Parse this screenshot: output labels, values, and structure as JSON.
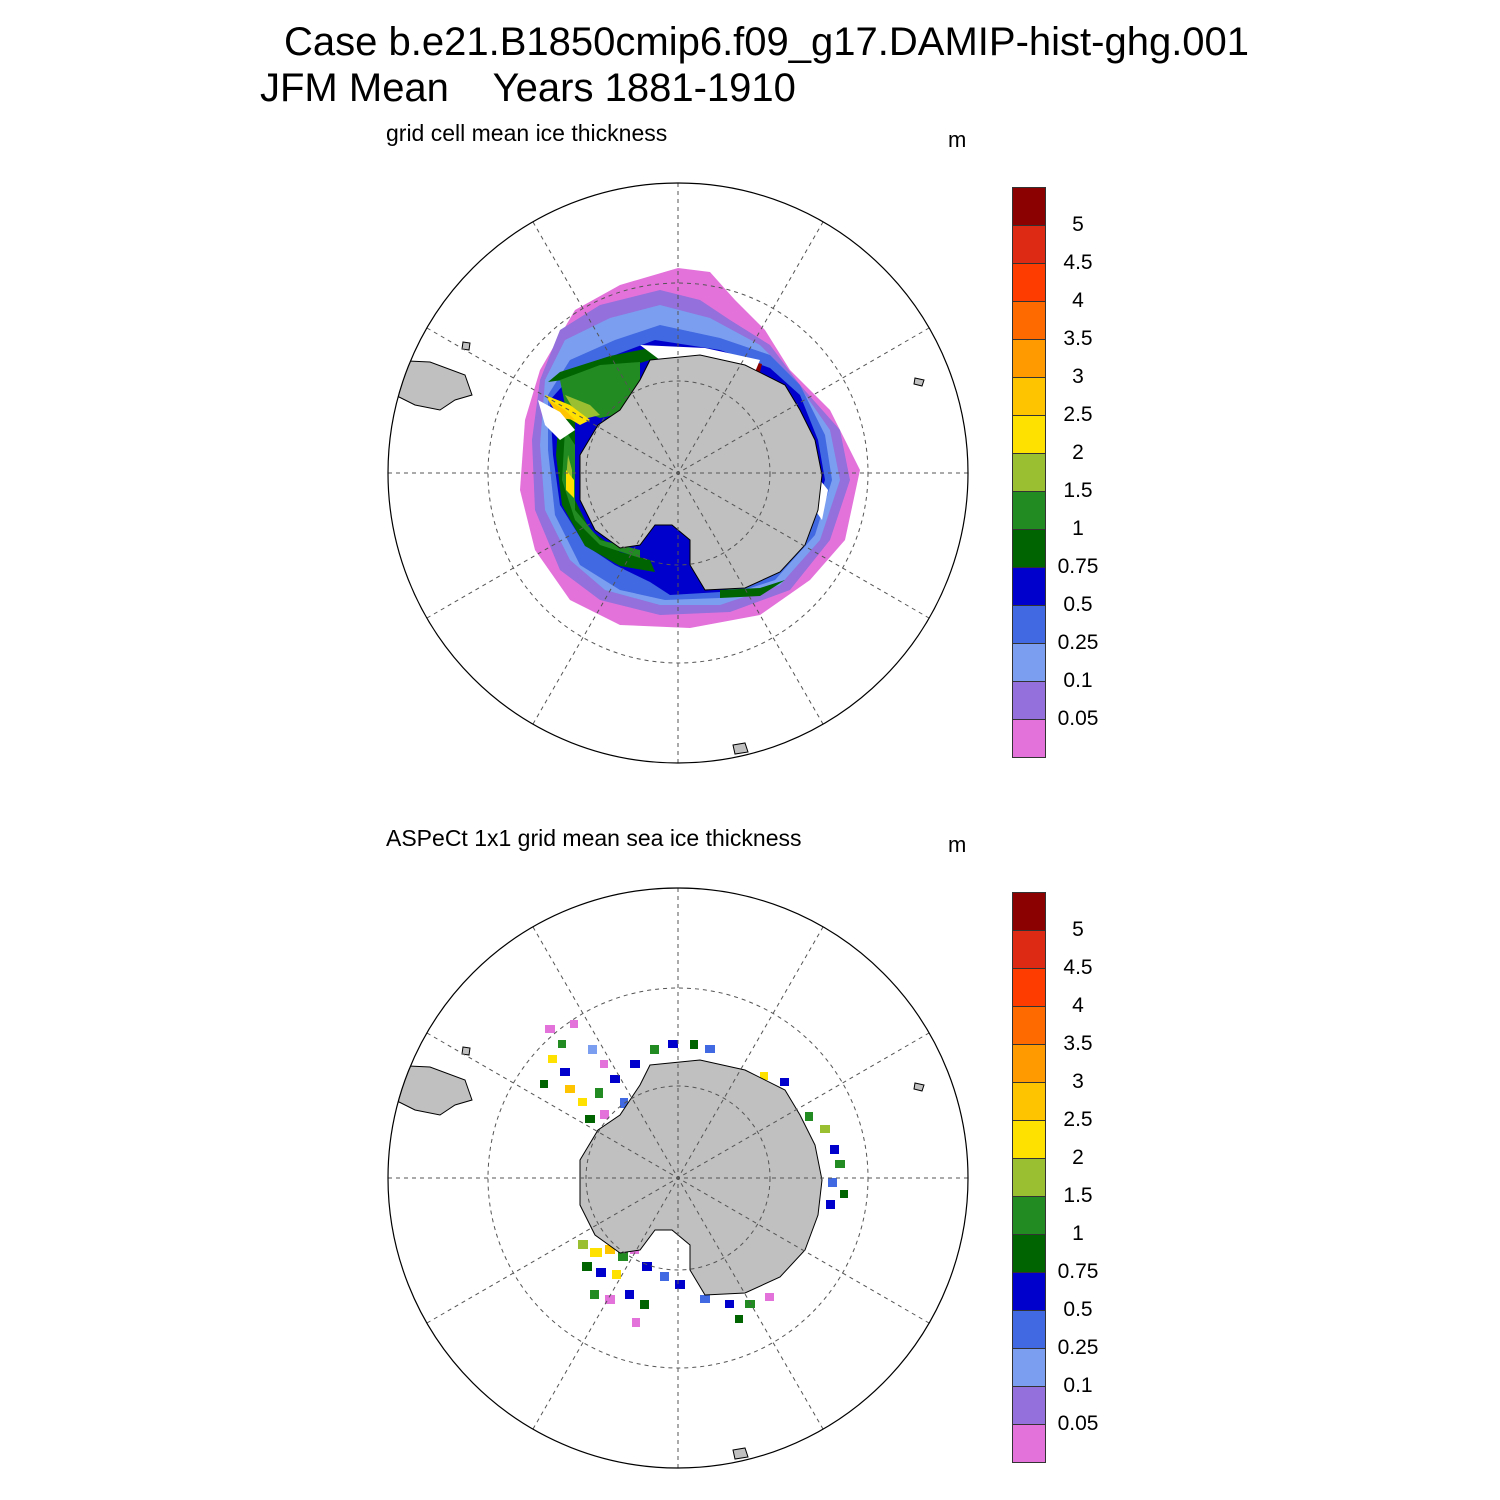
{
  "header": {
    "title_line1": "Case b.e21.B1850cmip6.f09_g17.DAMIP-hist-ghg.001",
    "title_line2": "JFM Mean    Years 1881-1910"
  },
  "panels": [
    {
      "title": "grid cell mean ice thickness",
      "units": "m"
    },
    {
      "title": "ASPeCt 1x1 grid mean sea ice thickness",
      "units": "m"
    }
  ],
  "colorbar": {
    "labels": [
      "5",
      "4.5",
      "4",
      "3.5",
      "3",
      "2.5",
      "2",
      "1.5",
      "1",
      "0.75",
      "0.5",
      "0.25",
      "0.1",
      "0.05"
    ],
    "colors_top_to_bottom": [
      "#8b0000",
      "#dc2a14",
      "#ff3c00",
      "#ff6a00",
      "#ff9a00",
      "#ffc400",
      "#ffe100",
      "#9abf30",
      "#228b22",
      "#006400",
      "#0000cd",
      "#4169e1",
      "#7b9ef0",
      "#9370db",
      "#e472db"
    ]
  },
  "map_style": {
    "land_color": "#c0c0c0",
    "grid": "dashed lat/lon lines",
    "projection": "south polar stereographic"
  }
}
